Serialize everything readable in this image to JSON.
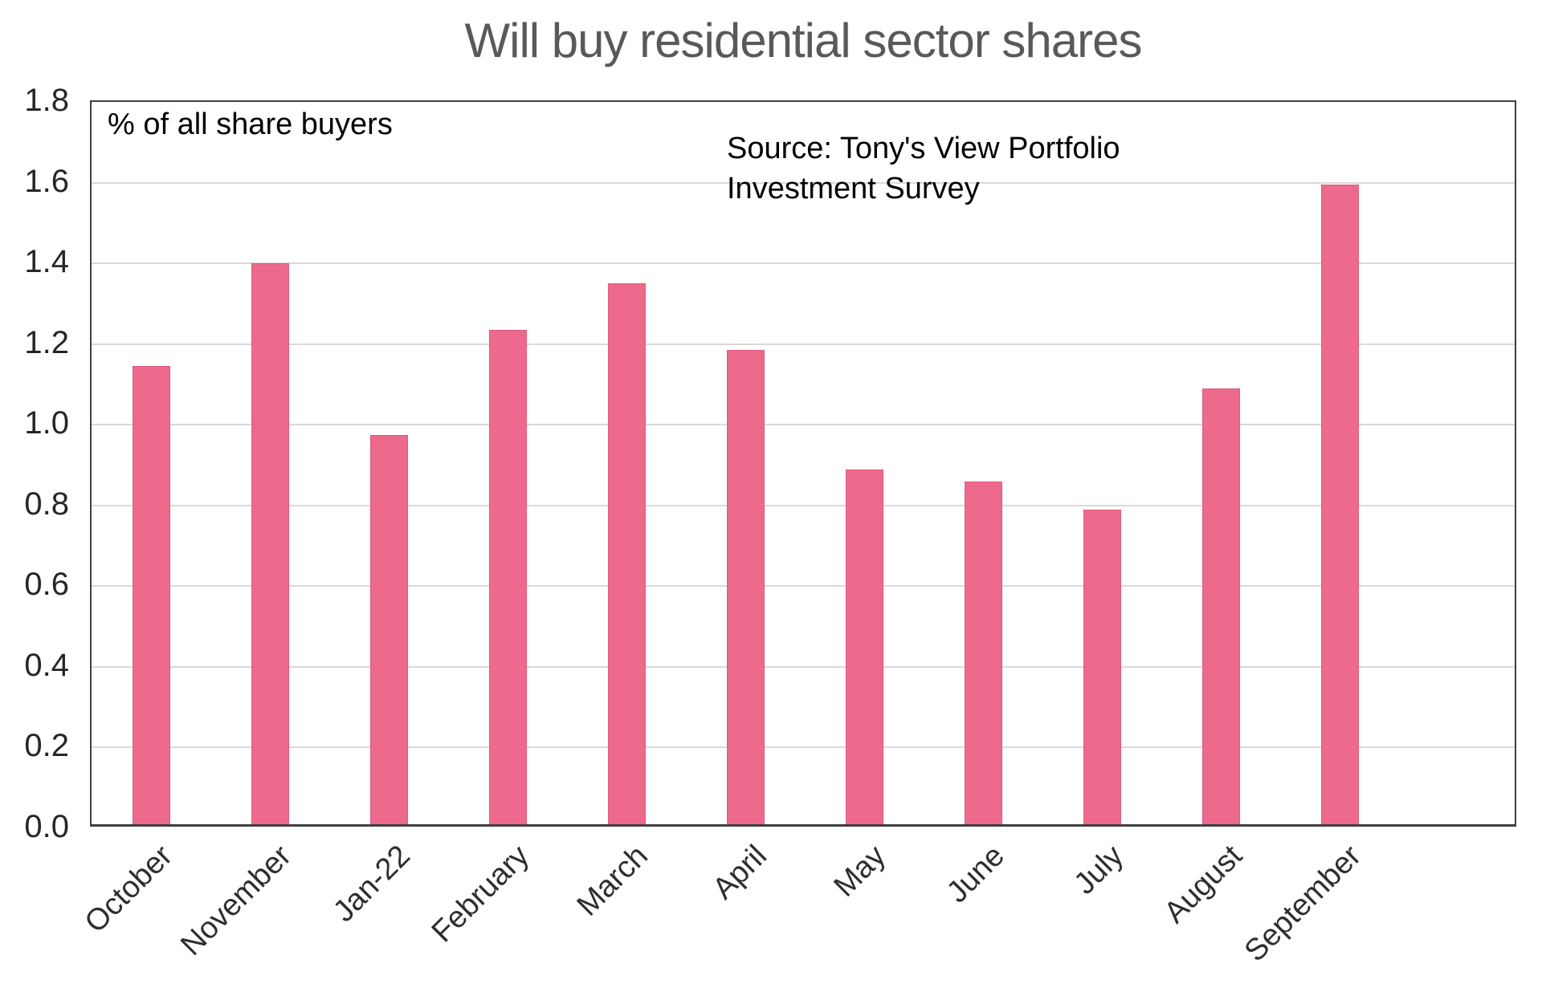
{
  "title": "Will buy residential sector shares",
  "annotation": "% of all share buyers",
  "source": {
    "line1": "Source: Tony's View Portfolio",
    "line2": "Investment Survey"
  },
  "colors": {
    "bar_fill": "#ed6a8c",
    "bar_edge": "#dd5c80",
    "gridline": "#d9d9d9",
    "axis_border": "#3f3f3f",
    "title_text": "#595959",
    "tick_text": "#262626",
    "annotation_text": "#000000"
  },
  "chart_data": {
    "type": "bar",
    "title": "Will buy residential sector shares",
    "categories": [
      "October",
      "November",
      "Jan-22",
      "February",
      "March",
      "April",
      "May",
      "June",
      "July",
      "August",
      "September"
    ],
    "values": [
      1.135,
      1.39,
      0.965,
      1.225,
      1.34,
      1.175,
      0.88,
      0.85,
      0.78,
      1.08,
      1.585
    ],
    "xlabel": "",
    "ylabel": "",
    "ylabel_annotation": "% of all share buyers",
    "ylim": [
      0.0,
      1.8
    ],
    "ytick_step": 0.2,
    "ytick_labels": [
      "0.0",
      "0.2",
      "0.4",
      "0.6",
      "0.8",
      "1.0",
      "1.2",
      "1.4",
      "1.6",
      "1.8"
    ],
    "grid": true,
    "legend": "none",
    "bar_color": "#ed6a8c",
    "source_annotation": "Source: Tony's View Portfolio Investment Survey"
  }
}
